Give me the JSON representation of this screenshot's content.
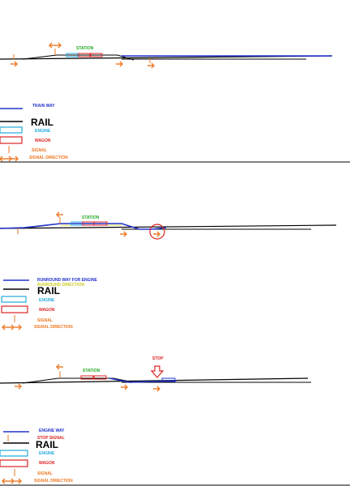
{
  "panels": [
    {
      "station_label": "STATION",
      "legend": {
        "way_label": "TRAIN WAY",
        "rail_label": "RAIL",
        "engine_label": "ENGINE",
        "wagon_label": "WAGON",
        "signal_label": "SIGNAL",
        "signal_direction_label": "SIGNAL DIRECTION"
      }
    },
    {
      "station_label": "STATION",
      "legend": {
        "way_label": "RUNROUND WAY FOR ENGINE",
        "extra_label": "RUNROUND DIRECTION",
        "rail_label": "RAIL",
        "engine_label": "ENGINE",
        "wagon_label": "WAGON",
        "signal_label": "SIGNAL",
        "signal_direction_label": "SIGNAL DIRECTION"
      }
    },
    {
      "station_label": "STATION",
      "stop_label": "STOP",
      "legend": {
        "way_label": "ENGINE WAY",
        "stop_signal_label": "STOP SIGNAL",
        "rail_label": "RAIL",
        "engine_label": "ENGINE",
        "wagon_label": "WAGON",
        "signal_label": "SIGNAL",
        "signal_direction_label": "SIGNAL DIRECTION"
      }
    }
  ],
  "colors": {
    "rail": "#000000",
    "way": "#2233cc",
    "engine": "#22aadd",
    "wagon": "#dd2222",
    "signal": "#ee7722",
    "station": "#22aa22",
    "stop": "#dd2222",
    "runround_direction": "#cccc22"
  }
}
